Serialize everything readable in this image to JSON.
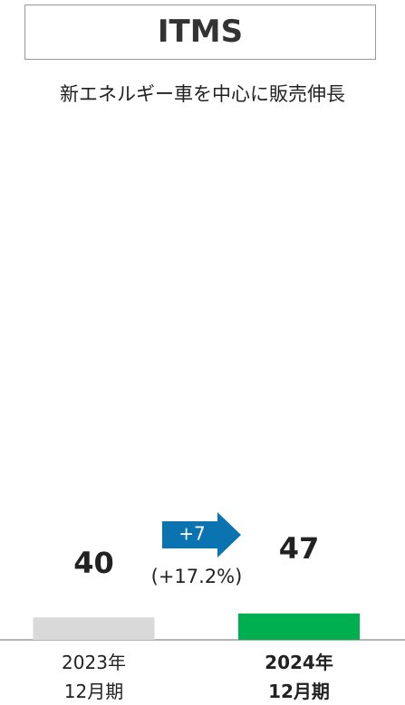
{
  "chart_data": {
    "type": "bar",
    "title": "ITMS",
    "subtitle": "新エネルギー車を中心に販売伸長",
    "categories": [
      "2023年\n12月期",
      "2024年\n12月期"
    ],
    "values": [
      40,
      47
    ],
    "colors": [
      "#d9d9d9",
      "#00b050"
    ],
    "ylim": [
      0,
      800
    ],
    "annotations": [
      "+7",
      "(+17.2%)"
    ]
  }
}
